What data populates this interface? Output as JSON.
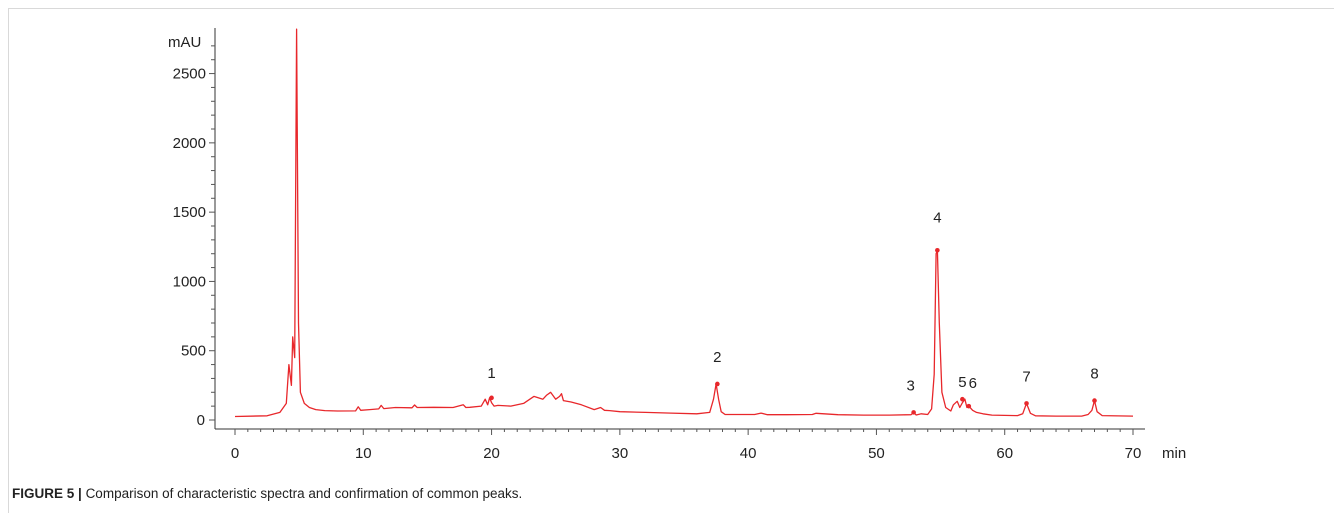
{
  "caption": {
    "label": "FIGURE 5 |",
    "text": "Comparison of characteristic spectra and confirmation of common peaks."
  },
  "chart_data": {
    "type": "line",
    "title": "",
    "xlabel": "min",
    "ylabel": "mAU",
    "xlim": [
      0,
      70
    ],
    "ylim": [
      0,
      2800
    ],
    "xticks": [
      0,
      10,
      20,
      30,
      40,
      50,
      60,
      70
    ],
    "yticks": [
      0,
      500,
      1000,
      1500,
      2000,
      2500
    ],
    "grid": false,
    "line_color": "#e8272b",
    "series": [
      {
        "x": [
          0,
          2.5,
          3.5,
          4.0,
          4.2,
          4.4,
          4.5,
          4.65,
          4.8,
          4.95,
          5.1,
          5.4,
          5.8,
          6.3,
          7.0,
          8.0,
          9.4,
          9.6,
          9.8,
          10.5,
          11.2,
          11.4,
          11.6,
          12.5,
          13.8,
          14.0,
          14.2,
          15.5,
          17.0,
          17.8,
          18.0,
          18.3,
          19.2,
          19.5,
          19.7,
          19.85,
          20.0,
          20.2,
          20.5,
          21.5,
          22.5,
          23.3,
          24.0,
          24.3,
          24.6,
          25.0,
          25.3,
          25.45,
          25.6,
          26.2,
          27.0,
          28.0,
          28.5,
          28.8,
          29.2,
          30.0,
          32.0,
          34.0,
          36.0,
          37.0,
          37.3,
          37.5,
          37.7,
          37.9,
          38.2,
          39.0,
          40.5,
          41.0,
          41.5,
          43.0,
          45.0,
          45.3,
          47.0,
          49.0,
          51.0,
          52.7,
          52.9,
          53.1,
          53.5,
          54.0,
          54.3,
          54.5,
          54.65,
          54.75,
          54.9,
          55.1,
          55.4,
          55.8,
          56.0,
          56.3,
          56.5,
          56.7,
          56.9,
          57.05,
          57.2,
          57.35,
          57.5,
          57.8,
          58.3,
          59.0,
          61.0,
          61.4,
          61.7,
          62.0,
          62.4,
          64.0,
          66.0,
          66.5,
          66.8,
          67.0,
          67.2,
          67.6,
          70.0
        ],
        "values": [
          25,
          30,
          55,
          120,
          400,
          250,
          600,
          450,
          2820,
          700,
          200,
          120,
          90,
          75,
          68,
          65,
          66,
          95,
          70,
          75,
          80,
          105,
          82,
          90,
          88,
          108,
          90,
          92,
          90,
          110,
          90,
          92,
          100,
          150,
          110,
          160,
          125,
          100,
          105,
          100,
          120,
          170,
          150,
          180,
          200,
          150,
          170,
          190,
          140,
          130,
          110,
          75,
          90,
          70,
          68,
          60,
          55,
          50,
          45,
          55,
          150,
          260,
          150,
          60,
          40,
          40,
          40,
          50,
          38,
          38,
          40,
          48,
          38,
          35,
          35,
          38,
          55,
          36,
          45,
          40,
          80,
          330,
          1200,
          1225,
          700,
          200,
          90,
          65,
          110,
          135,
          90,
          125,
          150,
          90,
          100,
          85,
          70,
          55,
          45,
          35,
          32,
          45,
          120,
          48,
          30,
          28,
          28,
          40,
          70,
          140,
          60,
          32,
          28
        ]
      }
    ],
    "peaks": [
      {
        "label": "1",
        "x": 20.0,
        "y": 160
      },
      {
        "label": "2",
        "x": 37.6,
        "y": 260
      },
      {
        "label": "3",
        "x": 52.9,
        "y": 55
      },
      {
        "label": "4",
        "x": 54.75,
        "y": 1225
      },
      {
        "label": "5",
        "x": 56.7,
        "y": 150
      },
      {
        "label": "6",
        "x": 57.2,
        "y": 100
      },
      {
        "label": "7",
        "x": 61.7,
        "y": 120
      },
      {
        "label": "8",
        "x": 67.0,
        "y": 140
      }
    ]
  }
}
